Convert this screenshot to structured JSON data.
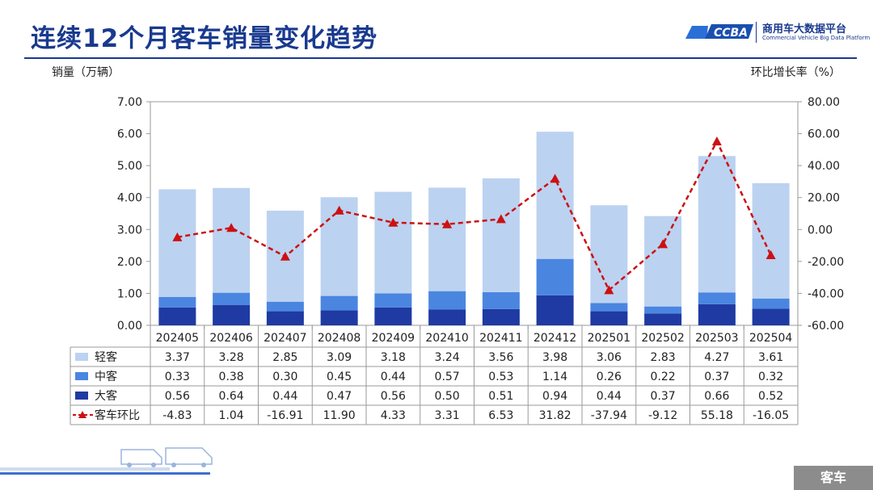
{
  "title": "连续12个月客车销量变化趋势",
  "logo": {
    "mark": "CCBA",
    "cn": "商用车大数据平台",
    "en": "Commercial Vehicle Big Data Platform"
  },
  "left_axis_label": "销量（万辆）",
  "right_axis_label": "环比增长率（%）",
  "bottom_tag": "客车",
  "chart_data": {
    "type": "bar",
    "stacked": true,
    "categories": [
      "202405",
      "202406",
      "202407",
      "202408",
      "202409",
      "202410",
      "202411",
      "202412",
      "202501",
      "202502",
      "202503",
      "202504"
    ],
    "series": [
      {
        "name": "大客",
        "type": "bar",
        "color": "#1f3aa3",
        "values": [
          0.56,
          0.64,
          0.44,
          0.47,
          0.56,
          0.5,
          0.51,
          0.94,
          0.44,
          0.37,
          0.66,
          0.52
        ]
      },
      {
        "name": "中客",
        "type": "bar",
        "color": "#4a86e0",
        "values": [
          0.33,
          0.38,
          0.3,
          0.45,
          0.44,
          0.57,
          0.53,
          1.14,
          0.26,
          0.22,
          0.37,
          0.32
        ]
      },
      {
        "name": "轻客",
        "type": "bar",
        "color": "#bcd2f1",
        "values": [
          3.37,
          3.28,
          2.85,
          3.09,
          3.18,
          3.24,
          3.56,
          3.98,
          3.06,
          2.83,
          4.27,
          3.61
        ]
      },
      {
        "name": "客车环比",
        "type": "line",
        "axis": "right",
        "color": "#cc1111",
        "values": [
          -4.83,
          1.04,
          -16.91,
          11.9,
          4.33,
          3.31,
          6.53,
          31.82,
          -37.94,
          -9.12,
          55.18,
          -16.05
        ]
      }
    ],
    "table_rows": [
      {
        "name": "轻客",
        "values": [
          "3.37",
          "3.28",
          "2.85",
          "3.09",
          "3.18",
          "3.24",
          "3.56",
          "3.98",
          "3.06",
          "2.83",
          "4.27",
          "3.61"
        ]
      },
      {
        "name": "中客",
        "values": [
          "0.33",
          "0.38",
          "0.30",
          "0.45",
          "0.44",
          "0.57",
          "0.53",
          "1.14",
          "0.26",
          "0.22",
          "0.37",
          "0.32"
        ]
      },
      {
        "name": "大客",
        "values": [
          "0.56",
          "0.64",
          "0.44",
          "0.47",
          "0.56",
          "0.50",
          "0.51",
          "0.94",
          "0.44",
          "0.37",
          "0.66",
          "0.52"
        ]
      },
      {
        "name": "客车环比",
        "values": [
          "-4.83",
          "1.04",
          "-16.91",
          "11.90",
          "4.33",
          "3.31",
          "6.53",
          "31.82",
          "-37.94",
          "-9.12",
          "55.18",
          "-16.05"
        ]
      }
    ],
    "ylim_left": [
      0,
      7
    ],
    "yticks_left": [
      "7.00",
      "6.00",
      "5.00",
      "4.00",
      "3.00",
      "2.00",
      "1.00",
      "0.00"
    ],
    "ylim_right": [
      -60,
      80
    ],
    "yticks_right": [
      "80.00",
      "60.00",
      "40.00",
      "20.00",
      "0.00",
      "-20.00",
      "-40.00",
      "-60.00"
    ],
    "grid": false,
    "legend": "table"
  }
}
